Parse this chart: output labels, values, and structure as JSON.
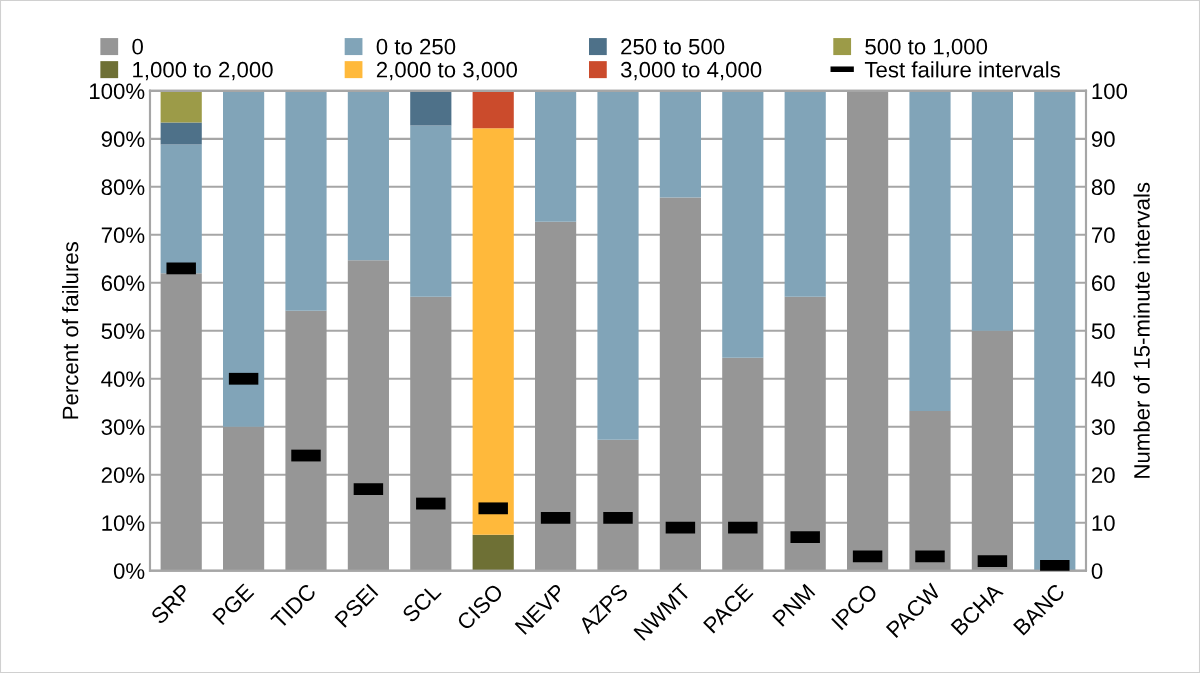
{
  "chart_data": {
    "type": "bar",
    "stacked": true,
    "ylabel": "Percent of failures",
    "y2label": "Number of 15-minute intervals",
    "categories": [
      "SRP",
      "PGE",
      "TIDC",
      "PSEI",
      "SCL",
      "CISO",
      "NEVP",
      "AZPS",
      "NWMT",
      "PACE",
      "PNM",
      "IPCO",
      "PACW",
      "BCHA",
      "BANC"
    ],
    "series": [
      {
        "name": "0",
        "color": "#969696",
        "values": [
          62,
          30,
          54.2,
          64.7,
          57.1,
          0,
          72.7,
          27.3,
          77.8,
          44.4,
          57.1,
          100,
          33.3,
          50,
          0
        ]
      },
      {
        "name": "0 to 250",
        "color": "#81a4b8",
        "values": [
          26.8,
          70,
          45.8,
          35.3,
          35.7,
          0,
          27.3,
          72.7,
          22.2,
          55.6,
          42.9,
          0,
          66.7,
          50,
          100
        ]
      },
      {
        "name": "250 to 500",
        "color": "#4e7189",
        "values": [
          4.6,
          0,
          0,
          0,
          7.2,
          0,
          0,
          0,
          0,
          0,
          0,
          0,
          0,
          0,
          0
        ]
      },
      {
        "name": "500 to 1,000",
        "color": "#9c9b48",
        "values": [
          6.6,
          0,
          0,
          0,
          0,
          0,
          0,
          0,
          0,
          0,
          0,
          0,
          0,
          0,
          0
        ]
      },
      {
        "name": "1,000 to 2,000",
        "color": "#6e7035",
        "values": [
          0,
          0,
          0,
          0,
          0,
          7.5,
          0,
          0,
          0,
          0,
          0,
          0,
          0,
          0,
          0
        ]
      },
      {
        "name": "2,000 to 3,000",
        "color": "#ffb93b",
        "values": [
          0,
          0,
          0,
          0,
          0,
          84.7,
          0,
          0,
          0,
          0,
          0,
          0,
          0,
          0,
          0
        ]
      },
      {
        "name": "3,000 to 4,000",
        "color": "#cb4b2c",
        "values": [
          0,
          0,
          0,
          0,
          0,
          7.8,
          0,
          0,
          0,
          0,
          0,
          0,
          0,
          0,
          0
        ]
      },
      {
        "name": "Test failure intervals",
        "type": "scatter",
        "axis": "y2",
        "color": "#000000",
        "values": [
          63,
          40,
          24,
          17,
          14,
          13,
          11,
          11,
          9,
          9,
          7,
          3,
          3,
          2,
          1
        ]
      }
    ],
    "ylim": [
      0,
      100
    ],
    "yticks": [
      {
        "value": 0,
        "label": "0%"
      },
      {
        "value": 10,
        "label": "10%"
      },
      {
        "value": 20,
        "label": "20%"
      },
      {
        "value": 30,
        "label": "30%"
      },
      {
        "value": 40,
        "label": "40%"
      },
      {
        "value": 50,
        "label": "50%"
      },
      {
        "value": 60,
        "label": "60%"
      },
      {
        "value": 70,
        "label": "70%"
      },
      {
        "value": 80,
        "label": "80%"
      },
      {
        "value": 90,
        "label": "90%"
      },
      {
        "value": 100,
        "label": "100%"
      }
    ],
    "y2lim": [
      0,
      100
    ],
    "y2ticks": [
      0,
      10,
      20,
      30,
      40,
      50,
      60,
      70,
      80,
      90,
      100
    ],
    "grid": "y",
    "legend": "top"
  }
}
